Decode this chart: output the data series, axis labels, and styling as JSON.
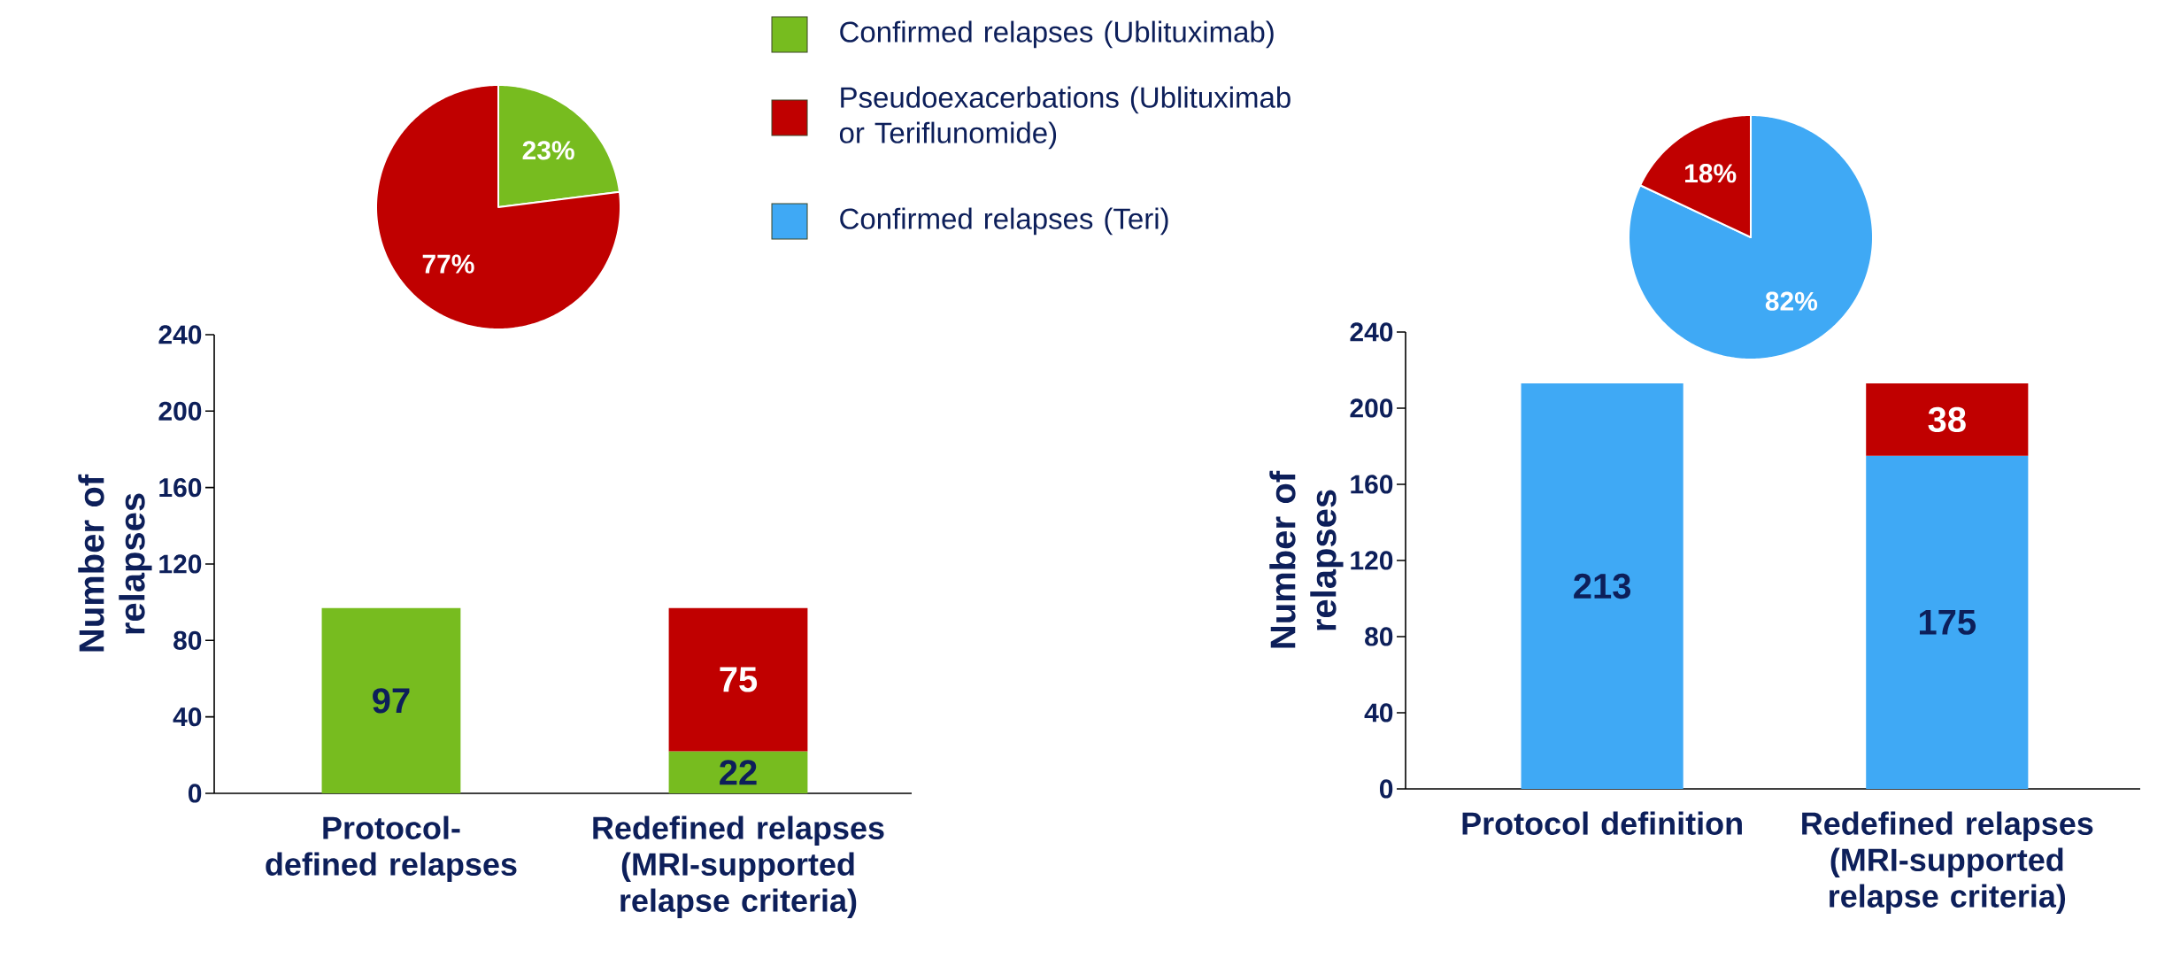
{
  "chart_data": [
    {
      "type": "pie",
      "categories": [
        null,
        null
      ],
      "values": [
        23,
        77
      ],
      "colors": [
        "#77bc1f",
        "#c00000"
      ],
      "value_labels": [
        "23%",
        "77%"
      ]
    },
    {
      "type": "pie",
      "categories": [
        null,
        null
      ],
      "values": [
        82,
        18
      ],
      "colors": [
        "#3fa9f5",
        "#c00000"
      ],
      "value_labels": [
        "82%",
        "18%"
      ]
    },
    {
      "type": "bar",
      "stacked": true,
      "legend": "top",
      "data_labels": true,
      "ylabel": "Number of relapses",
      "categories": [
        "Protocol-defined relapses",
        "Redefined relapses (MRI-supported relapse criteria)"
      ],
      "ylim": [
        0,
        240
      ],
      "yticks": [
        0,
        40,
        80,
        120,
        160,
        200,
        240
      ],
      "series": [
        {
          "name": "Confirmed relapses (Ublituximab)",
          "color": "#77bc1f",
          "values": [
            97,
            22
          ]
        },
        {
          "name": "Pseudoexacerbations (Ublituximab or Teriflunomide)",
          "color": "#c00000",
          "values": [
            null,
            75
          ]
        }
      ]
    },
    {
      "type": "bar",
      "stacked": true,
      "legend": "top",
      "data_labels": true,
      "ylabel": "Number of relapses",
      "categories": [
        "Protocol definition",
        "Redefined relapses (MRI-supported relapse criteria)"
      ],
      "ylim": [
        0,
        240
      ],
      "yticks": [
        0,
        40,
        80,
        120,
        160,
        200,
        240
      ],
      "series": [
        {
          "name": "Confirmed relapses (Teri)",
          "color": "#3fa9f5",
          "values": [
            213,
            175
          ]
        },
        {
          "color": "#c00000",
          "values": [
            null,
            38
          ]
        }
      ]
    }
  ]
}
